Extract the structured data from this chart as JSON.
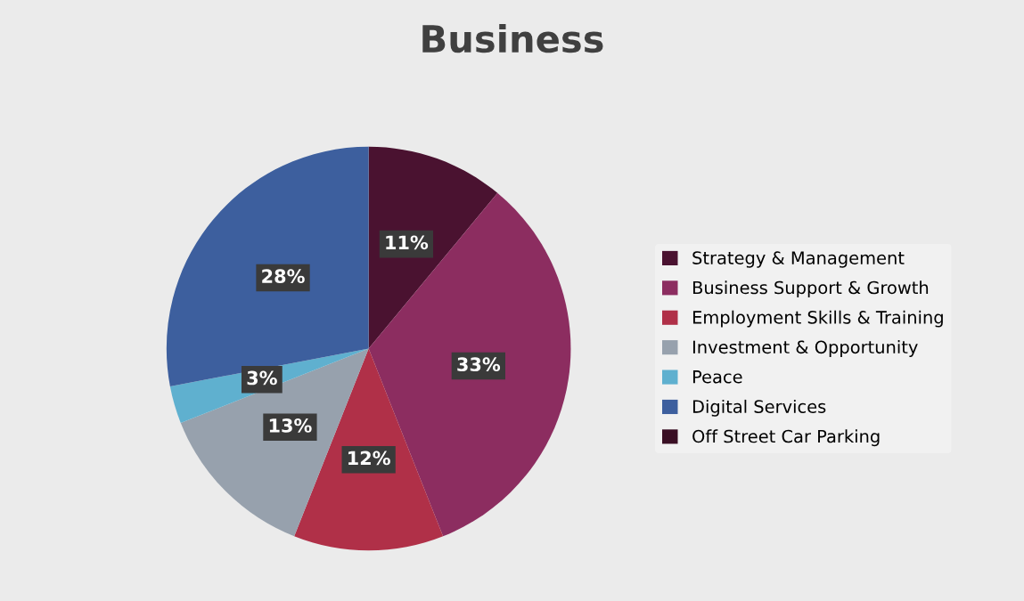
{
  "chart_data": {
    "type": "pie",
    "title": "Business",
    "categories": [
      "Strategy & Management",
      "Business Support & Growth",
      "Employment Skills & Training",
      "Investment & Opportunity",
      "Peace",
      "Digital Services",
      "Off Street Car Parking"
    ],
    "values": [
      11,
      33,
      12,
      13,
      3,
      28,
      0
    ],
    "colors": [
      "#4a1230",
      "#8c2d60",
      "#b03048",
      "#97a1ad",
      "#5fb0cf",
      "#3d5f9e",
      "#3a0f24"
    ],
    "value_labels": [
      "11%",
      "33%",
      "12%",
      "13%",
      "3%",
      "28%",
      null
    ],
    "legend": "right"
  }
}
